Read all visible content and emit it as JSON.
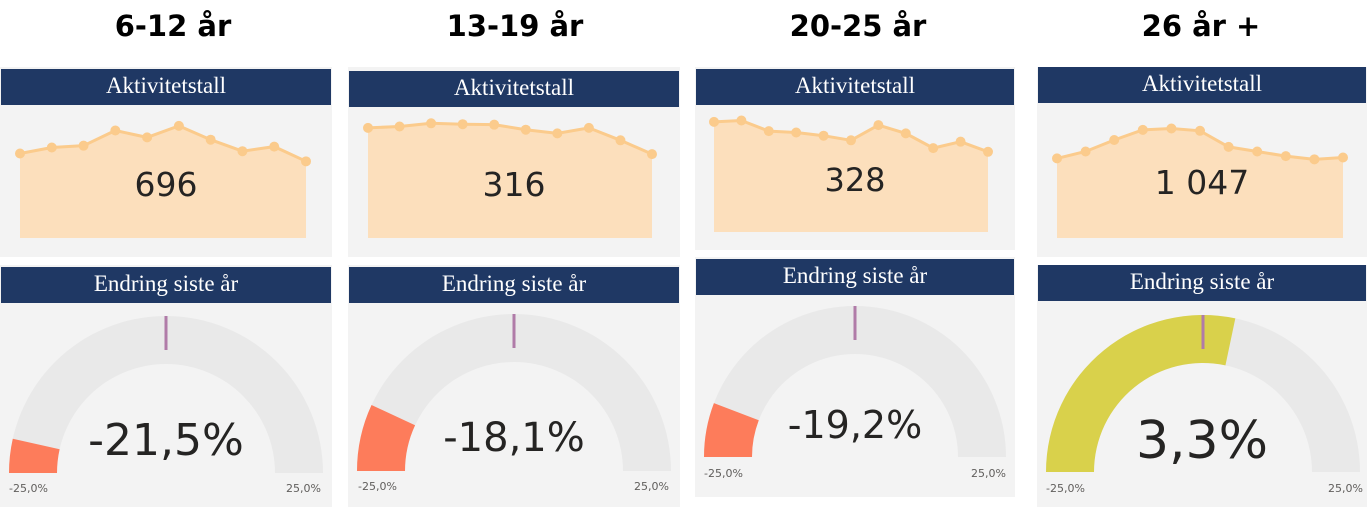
{
  "groups": [
    {
      "title": "6-12 år",
      "activity": {
        "header": "Aktivitetstall",
        "value": "696",
        "trend": [
          0.25,
          0.38,
          0.42,
          0.75,
          0.6,
          0.85,
          0.55,
          0.3,
          0.4,
          0.08
        ]
      },
      "change": {
        "header": "Endring siste år",
        "value_text": "-21,5%",
        "value": -21.5,
        "min_label": "-25,0%",
        "max_label": "25,0%",
        "fill_color": "#fd7c5b"
      }
    },
    {
      "title": "13-19 år",
      "activity": {
        "header": "Aktivitetstall",
        "value": "316",
        "trend": [
          0.72,
          0.75,
          0.82,
          0.8,
          0.79,
          0.68,
          0.6,
          0.72,
          0.45,
          0.15
        ]
      },
      "change": {
        "header": "Endring siste år",
        "value_text": "-18,1%",
        "value": -18.1,
        "min_label": "-25,0%",
        "max_label": "25,0%",
        "fill_color": "#fd7c5b"
      }
    },
    {
      "title": "20-25 år",
      "activity": {
        "header": "Aktivitetstall",
        "value": "328",
        "trend": [
          0.85,
          0.88,
          0.65,
          0.62,
          0.55,
          0.45,
          0.78,
          0.6,
          0.28,
          0.42,
          0.2
        ]
      },
      "change": {
        "header": "Endring siste år",
        "value_text": "-19,2%",
        "value": -19.2,
        "min_label": "-25,0%",
        "max_label": "25,0%",
        "fill_color": "#fd7c5b"
      }
    },
    {
      "title": "26 år +",
      "activity": {
        "header": "Aktivitetstall",
        "value": "1 047",
        "trend": [
          0.1,
          0.25,
          0.5,
          0.72,
          0.75,
          0.7,
          0.35,
          0.25,
          0.15,
          0.08,
          0.12
        ]
      },
      "change": {
        "header": "Endring siste år",
        "value_text": "3,3%",
        "value": 3.3,
        "min_label": "-25,0%",
        "max_label": "25,0%",
        "fill_color": "#d9d14b"
      }
    }
  ],
  "colors": {
    "header_bg": "#1f3864",
    "spark_fill": "#fcdfbc",
    "spark_line": "#fbcb8c",
    "gauge_track": "#e9e9e9",
    "gauge_target": "#b07ba8"
  }
}
